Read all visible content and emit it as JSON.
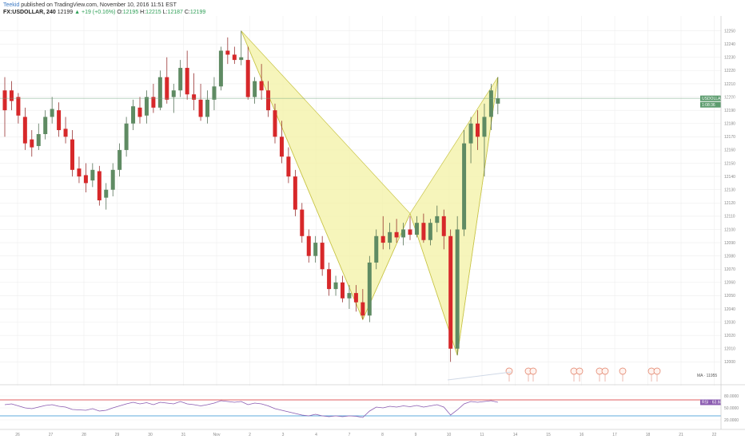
{
  "header": {
    "author": "Teekid",
    "published": "published on TradingView.com, November 10, 2016 11:51 EST",
    "symbol": "FX:USDOLLAR, 240",
    "price": "12199",
    "change": "▲ +19 (+0.16%)",
    "o_label": "O:",
    "o_value": "12195",
    "h_label": "H:",
    "h_value": "12215",
    "l_label": "L:",
    "l_value": "12187",
    "c_label": "C:",
    "c_value": "12199"
  },
  "price_tag": "USDOLLAR · 12199",
  "time_tag": "1:08:36",
  "rsi_tag": "RSI · 63.6083",
  "ma_label": "MA · 11955",
  "colors": {
    "up": "#5f8b63",
    "down": "#d7282a",
    "pattern_fill": "#f3f1a4",
    "pattern_stroke": "#c9c54a",
    "rsi_line": "#8a5ab0",
    "rsi_upper": "#d7282a",
    "rsi_lower": "#2a8fd0",
    "price_line": "#6fa27d"
  },
  "chart_data": {
    "type": "candlestick",
    "ylim": [
      11990,
      12260
    ],
    "y_ticks": [
      12250,
      12240,
      12230,
      12220,
      12210,
      12200,
      12190,
      12180,
      12170,
      12160,
      12150,
      12140,
      12130,
      12120,
      12110,
      12100,
      12090,
      12080,
      12070,
      12060,
      12050,
      12040,
      12030,
      12020,
      12010,
      12000
    ],
    "x_ticks": [
      "26",
      "27",
      "28",
      "29",
      "30",
      "31",
      "Nov",
      "2",
      "3",
      "4",
      "7",
      "8",
      "9",
      "10",
      "11",
      "14",
      "15",
      "16",
      "17",
      "18",
      "21",
      "22"
    ],
    "candles": [
      {
        "o": 12205,
        "h": 12215,
        "l": 12170,
        "c": 12190
      },
      {
        "o": 12205,
        "h": 12212,
        "l": 12190,
        "c": 12197
      },
      {
        "o": 12200,
        "h": 12203,
        "l": 12180,
        "c": 12186
      },
      {
        "o": 12185,
        "h": 12192,
        "l": 12160,
        "c": 12165
      },
      {
        "o": 12168,
        "h": 12175,
        "l": 12155,
        "c": 12162
      },
      {
        "o": 12163,
        "h": 12180,
        "l": 12160,
        "c": 12172
      },
      {
        "o": 12172,
        "h": 12190,
        "l": 12168,
        "c": 12185
      },
      {
        "o": 12185,
        "h": 12200,
        "l": 12180,
        "c": 12191
      },
      {
        "o": 12190,
        "h": 12196,
        "l": 12170,
        "c": 12175
      },
      {
        "o": 12176,
        "h": 12185,
        "l": 12165,
        "c": 12170
      },
      {
        "o": 12168,
        "h": 12175,
        "l": 12140,
        "c": 12145
      },
      {
        "o": 12146,
        "h": 12155,
        "l": 12135,
        "c": 12140
      },
      {
        "o": 12141,
        "h": 12150,
        "l": 12128,
        "c": 12135
      },
      {
        "o": 12137,
        "h": 12150,
        "l": 12132,
        "c": 12145
      },
      {
        "o": 12144,
        "h": 12148,
        "l": 12118,
        "c": 12122
      },
      {
        "o": 12124,
        "h": 12135,
        "l": 12115,
        "c": 12130
      },
      {
        "o": 12130,
        "h": 12150,
        "l": 12125,
        "c": 12145
      },
      {
        "o": 12145,
        "h": 12165,
        "l": 12140,
        "c": 12160
      },
      {
        "o": 12160,
        "h": 12185,
        "l": 12155,
        "c": 12180
      },
      {
        "o": 12180,
        "h": 12198,
        "l": 12175,
        "c": 12193
      },
      {
        "o": 12192,
        "h": 12200,
        "l": 12180,
        "c": 12185
      },
      {
        "o": 12186,
        "h": 12205,
        "l": 12180,
        "c": 12200
      },
      {
        "o": 12200,
        "h": 12210,
        "l": 12188,
        "c": 12192
      },
      {
        "o": 12192,
        "h": 12220,
        "l": 12190,
        "c": 12215
      },
      {
        "o": 12215,
        "h": 12230,
        "l": 12195,
        "c": 12198
      },
      {
        "o": 12200,
        "h": 12210,
        "l": 12188,
        "c": 12205
      },
      {
        "o": 12205,
        "h": 12228,
        "l": 12200,
        "c": 12222
      },
      {
        "o": 12222,
        "h": 12235,
        "l": 12198,
        "c": 12202
      },
      {
        "o": 12202,
        "h": 12218,
        "l": 12190,
        "c": 12198
      },
      {
        "o": 12198,
        "h": 12210,
        "l": 12182,
        "c": 12185
      },
      {
        "o": 12185,
        "h": 12205,
        "l": 12180,
        "c": 12198
      },
      {
        "o": 12198,
        "h": 12215,
        "l": 12190,
        "c": 12208
      },
      {
        "o": 12208,
        "h": 12238,
        "l": 12205,
        "c": 12235
      },
      {
        "o": 12235,
        "h": 12245,
        "l": 12225,
        "c": 12232
      },
      {
        "o": 12232,
        "h": 12238,
        "l": 12225,
        "c": 12228
      },
      {
        "o": 12228,
        "h": 12250,
        "l": 12224,
        "c": 12230
      },
      {
        "o": 12228,
        "h": 12238,
        "l": 12198,
        "c": 12200
      },
      {
        "o": 12200,
        "h": 12215,
        "l": 12195,
        "c": 12212
      },
      {
        "o": 12212,
        "h": 12225,
        "l": 12198,
        "c": 12205
      },
      {
        "o": 12205,
        "h": 12212,
        "l": 12185,
        "c": 12190
      },
      {
        "o": 12190,
        "h": 12195,
        "l": 12165,
        "c": 12170
      },
      {
        "o": 12170,
        "h": 12182,
        "l": 12150,
        "c": 12155
      },
      {
        "o": 12155,
        "h": 12162,
        "l": 12135,
        "c": 12140
      },
      {
        "o": 12140,
        "h": 12145,
        "l": 12110,
        "c": 12115
      },
      {
        "o": 12115,
        "h": 12120,
        "l": 12090,
        "c": 12095
      },
      {
        "o": 12095,
        "h": 12100,
        "l": 12075,
        "c": 12080
      },
      {
        "o": 12080,
        "h": 12095,
        "l": 12075,
        "c": 12090
      },
      {
        "o": 12090,
        "h": 12095,
        "l": 12065,
        "c": 12070
      },
      {
        "o": 12070,
        "h": 12075,
        "l": 12050,
        "c": 12055
      },
      {
        "o": 12055,
        "h": 12065,
        "l": 12050,
        "c": 12060
      },
      {
        "o": 12060,
        "h": 12065,
        "l": 12045,
        "c": 12048
      },
      {
        "o": 12048,
        "h": 12058,
        "l": 12040,
        "c": 12052
      },
      {
        "o": 12052,
        "h": 12058,
        "l": 12038,
        "c": 12045
      },
      {
        "o": 12045,
        "h": 12055,
        "l": 12032,
        "c": 12035
      },
      {
        "o": 12035,
        "h": 12080,
        "l": 12030,
        "c": 12075
      },
      {
        "o": 12075,
        "h": 12100,
        "l": 12070,
        "c": 12095
      },
      {
        "o": 12095,
        "h": 12110,
        "l": 12085,
        "c": 12090
      },
      {
        "o": 12090,
        "h": 12105,
        "l": 12085,
        "c": 12098
      },
      {
        "o": 12098,
        "h": 12108,
        "l": 12090,
        "c": 12094
      },
      {
        "o": 12094,
        "h": 12105,
        "l": 12088,
        "c": 12100
      },
      {
        "o": 12100,
        "h": 12110,
        "l": 12092,
        "c": 12096
      },
      {
        "o": 12096,
        "h": 12110,
        "l": 12094,
        "c": 12105
      },
      {
        "o": 12105,
        "h": 12112,
        "l": 12090,
        "c": 12092
      },
      {
        "o": 12092,
        "h": 12108,
        "l": 12088,
        "c": 12105
      },
      {
        "o": 12105,
        "h": 12118,
        "l": 12098,
        "c": 12110
      },
      {
        "o": 12110,
        "h": 12115,
        "l": 12085,
        "c": 12095
      },
      {
        "o": 12095,
        "h": 12100,
        "l": 12000,
        "c": 12010
      },
      {
        "o": 12010,
        "h": 12110,
        "l": 12005,
        "c": 12100
      },
      {
        "o": 12100,
        "h": 12175,
        "l": 12095,
        "c": 12165
      },
      {
        "o": 12165,
        "h": 12185,
        "l": 12150,
        "c": 12180
      },
      {
        "o": 12180,
        "h": 12190,
        "l": 12160,
        "c": 12170
      },
      {
        "o": 12170,
        "h": 12195,
        "l": 12140,
        "c": 12185
      },
      {
        "o": 12185,
        "h": 12210,
        "l": 12175,
        "c": 12205
      },
      {
        "o": 12195,
        "h": 12215,
        "l": 12187,
        "c": 12199
      }
    ],
    "pattern": [
      {
        "i": 35,
        "p": 12250
      },
      {
        "i": 53,
        "p": 12032
      },
      {
        "i": 60,
        "p": 12112
      },
      {
        "i": 67,
        "p": 12005
      },
      {
        "i": 73,
        "p": 12215
      }
    ],
    "rsi": {
      "levels": [
        70,
        30
      ],
      "values": [
        58,
        60,
        55,
        50,
        48,
        52,
        56,
        58,
        54,
        52,
        46,
        45,
        44,
        48,
        42,
        44,
        50,
        55,
        60,
        64,
        60,
        63,
        58,
        64,
        62,
        60,
        66,
        60,
        58,
        55,
        58,
        62,
        68,
        66,
        64,
        66,
        58,
        62,
        60,
        55,
        48,
        44,
        40,
        36,
        32,
        30,
        34,
        30,
        28,
        30,
        28,
        30,
        29,
        26,
        42,
        52,
        50,
        54,
        52,
        55,
        53,
        56,
        52,
        55,
        58,
        52,
        32,
        45,
        60,
        66,
        64,
        66,
        68,
        64
      ]
    }
  }
}
